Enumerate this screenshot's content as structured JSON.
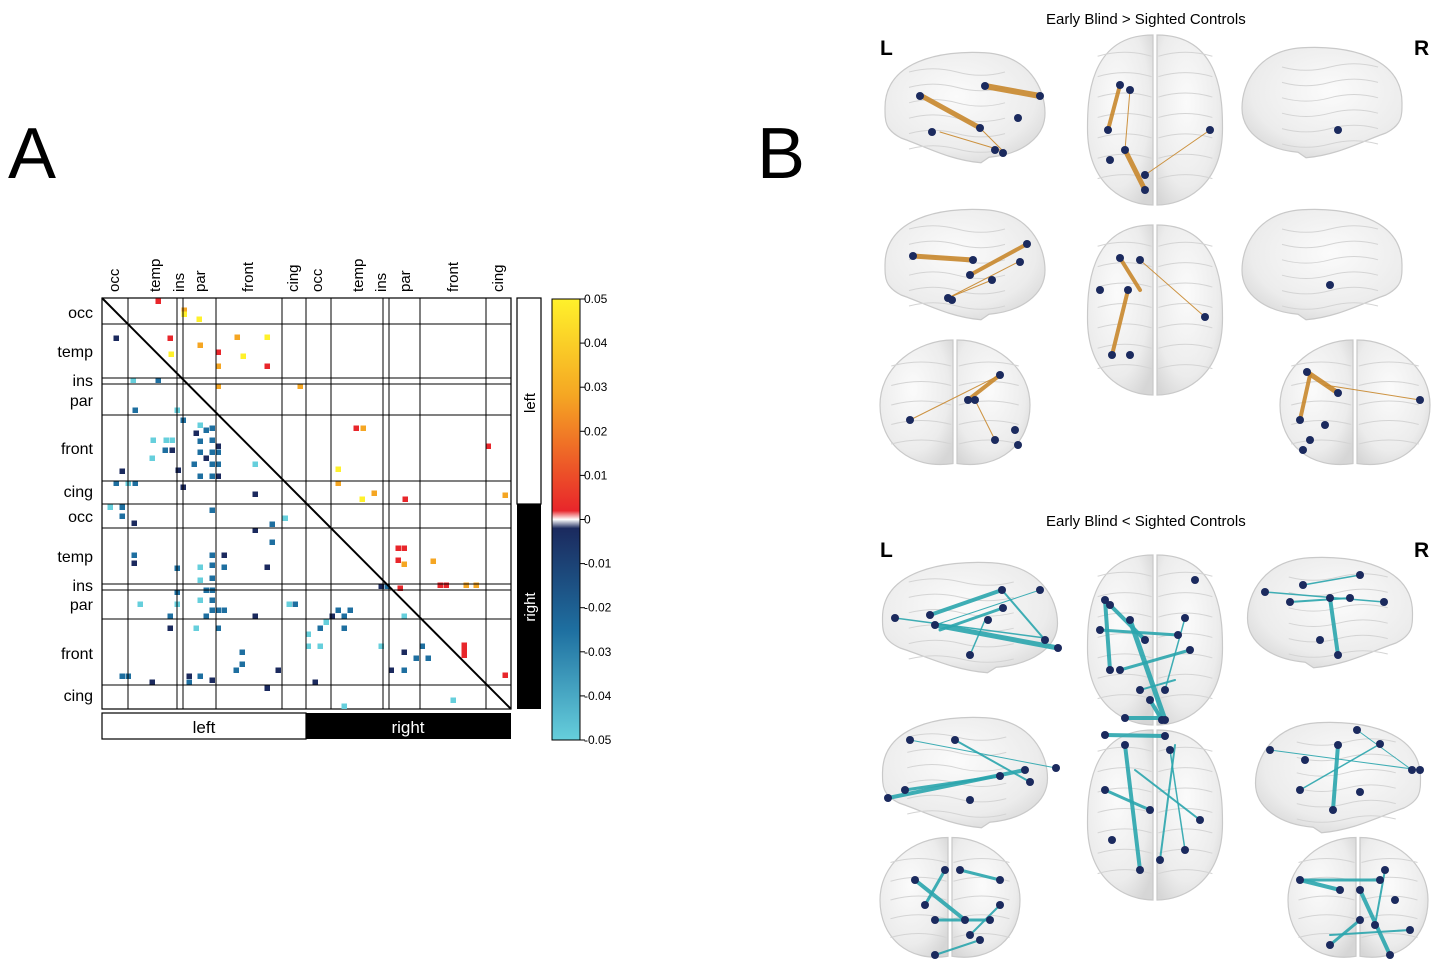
{
  "panels": {
    "a": {
      "letter": "A"
    },
    "b": {
      "letter": "B"
    }
  },
  "matrix": {
    "col_labels": [
      "occ",
      "temp",
      "ins",
      "par",
      "front",
      "cing",
      "occ",
      "temp",
      "ins",
      "par",
      "front",
      "cing"
    ],
    "row_labels": [
      "occ",
      "temp",
      "ins",
      "par",
      "front",
      "cing",
      "occ",
      "temp",
      "ins",
      "par",
      "front",
      "cing"
    ],
    "hemi_bottom": {
      "left": "left",
      "right": "right"
    },
    "hemi_side": {
      "left": "left",
      "right": "right"
    },
    "colorbar_ticks": [
      "0.05",
      "0.04",
      "0.03",
      "0.02",
      "0.01",
      "0",
      "-0.01",
      "-0.02",
      "-0.03",
      "-0.04",
      "-0.05"
    ],
    "colors": {
      "pos_top": "#fff12b",
      "pos_mid": "#f5a623",
      "pos_low": "#e8262b",
      "neg_low": "#1b2a5e",
      "neg_mid": "#1e6fa0",
      "neg_top": "#66cfdc"
    }
  },
  "brain_panel": {
    "top_title": "Early Blind > Sighted Controls",
    "bottom_title": "Early Blind < Sighted Controls",
    "left_label": "L",
    "right_label": "R",
    "colors": {
      "increase_edge": "#c8872c",
      "decrease_edge": "#2aa5ad",
      "node": "#1b2a5e"
    }
  }
}
